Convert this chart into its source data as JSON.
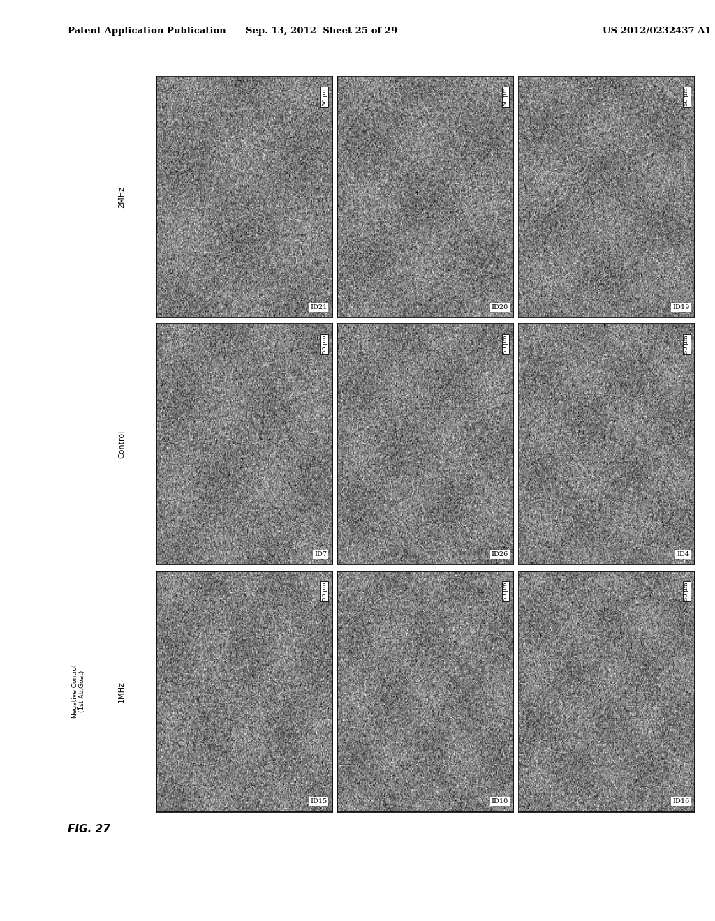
{
  "header_left": "Patent Application Publication",
  "header_mid": "Sep. 13, 2012  Sheet 25 of 29",
  "header_right": "US 2012/0232437 A1",
  "fig_label": "FIG. 27",
  "row_labels": [
    "2MHz",
    "Control",
    "1MHz"
  ],
  "side_label_line1": "Negative Control",
  "side_label_line2": "(1st Ab:Goat)",
  "grid_ids": [
    [
      "ID21",
      "ID20",
      "ID19"
    ],
    [
      "ID7",
      "ID26",
      "ID4"
    ],
    [
      "ID15",
      "ID10",
      "ID16"
    ]
  ],
  "scale_label": "50 μm",
  "noise_mean": 128,
  "noise_std": 38,
  "bg_color": "#ffffff",
  "header_fontsize": 9.5,
  "row_label_fontsize": 8,
  "id_fontsize": 7,
  "scale_fontsize": 6,
  "fig_label_fontsize": 11
}
